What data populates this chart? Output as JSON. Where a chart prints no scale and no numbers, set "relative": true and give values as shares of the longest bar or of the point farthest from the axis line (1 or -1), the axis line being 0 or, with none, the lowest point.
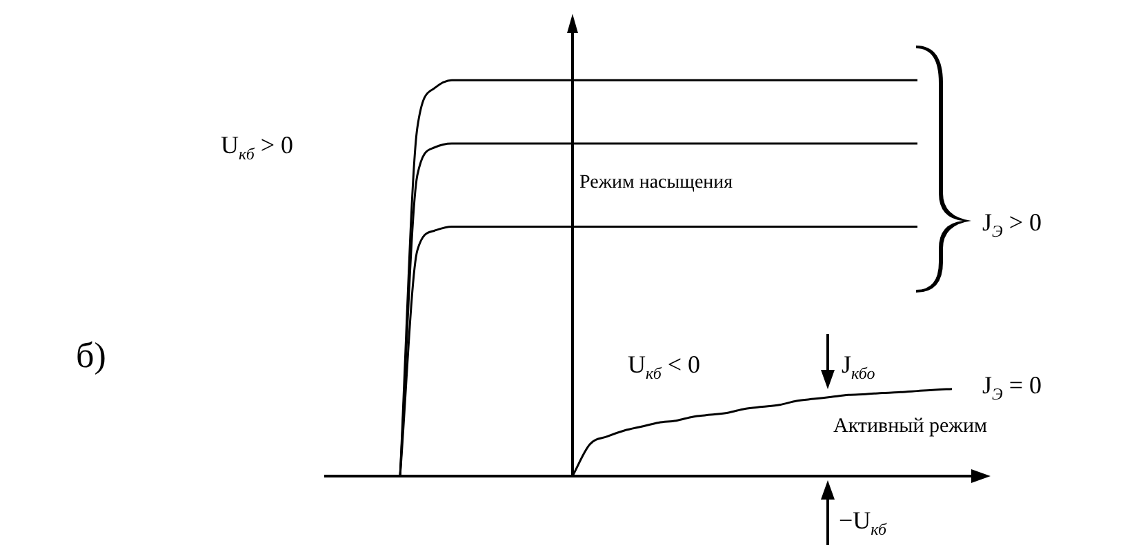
{
  "chart_data": {
    "type": "line",
    "relative": true,
    "categories": [
      null,
      null,
      null,
      null,
      null,
      null,
      null,
      null,
      null,
      null,
      null,
      null,
      null,
      null,
      null,
      null,
      null,
      null,
      null,
      null,
      null,
      null,
      null,
      null,
      null,
      null,
      null,
      null,
      null,
      null,
      null,
      null,
      null,
      null,
      null,
      null,
      null,
      null,
      null
    ],
    "series": [
      {
        "color": "#000000",
        "values": [
          null,
          null,
          null,
          null,
          0,
          0.88,
          0.98,
          1,
          1,
          1,
          1,
          1,
          1,
          1,
          1,
          1,
          1,
          1,
          1,
          1,
          1,
          1,
          1,
          1,
          1,
          1,
          1,
          1,
          1,
          1,
          1,
          1,
          1,
          1,
          1,
          null,
          null,
          null,
          null
        ]
      },
      {
        "color": "#000000",
        "values": [
          null,
          null,
          null,
          null,
          0,
          0.76,
          0.83,
          0.84,
          0.84,
          0.84,
          0.84,
          0.84,
          0.84,
          0.84,
          0.84,
          0.84,
          0.84,
          0.84,
          0.84,
          0.84,
          0.84,
          0.84,
          0.84,
          0.84,
          0.84,
          0.84,
          0.84,
          0.84,
          0.84,
          0.84,
          0.84,
          0.84,
          0.84,
          0.84,
          0.84,
          null,
          null,
          null,
          null
        ]
      },
      {
        "color": "#000000",
        "values": [
          null,
          null,
          null,
          null,
          0,
          0.57,
          0.62,
          0.63,
          0.63,
          0.63,
          0.63,
          0.63,
          0.63,
          0.63,
          0.63,
          0.63,
          0.63,
          0.63,
          0.63,
          0.63,
          0.63,
          0.63,
          0.63,
          0.63,
          0.63,
          0.63,
          0.63,
          0.63,
          0.63,
          0.63,
          0.63,
          0.63,
          0.63,
          0.63,
          0.63,
          null,
          null,
          null,
          null
        ]
      },
      {
        "color": "#000000",
        "values": [
          null,
          null,
          null,
          null,
          null,
          null,
          null,
          null,
          null,
          null,
          null,
          null,
          null,
          null,
          0,
          0.08,
          0.1,
          0.115,
          0.125,
          0.135,
          0.14,
          0.15,
          0.155,
          0.16,
          0.17,
          0.175,
          0.18,
          0.19,
          0.195,
          0.2,
          0.205,
          0.207,
          0.21,
          0.212,
          0.215,
          0.218,
          0.22,
          null,
          null
        ]
      }
    ],
    "annotations": [
      "б)",
      "U$_{кб}$ > 0",
      "Режим насыщения",
      "J$_{Э}$ > 0",
      "U$_{кб}$ < 0",
      "J$_{кбо}$",
      "J$_{Э}$ = 0",
      "Активный режим",
      "−U$_{кб}$"
    ]
  }
}
